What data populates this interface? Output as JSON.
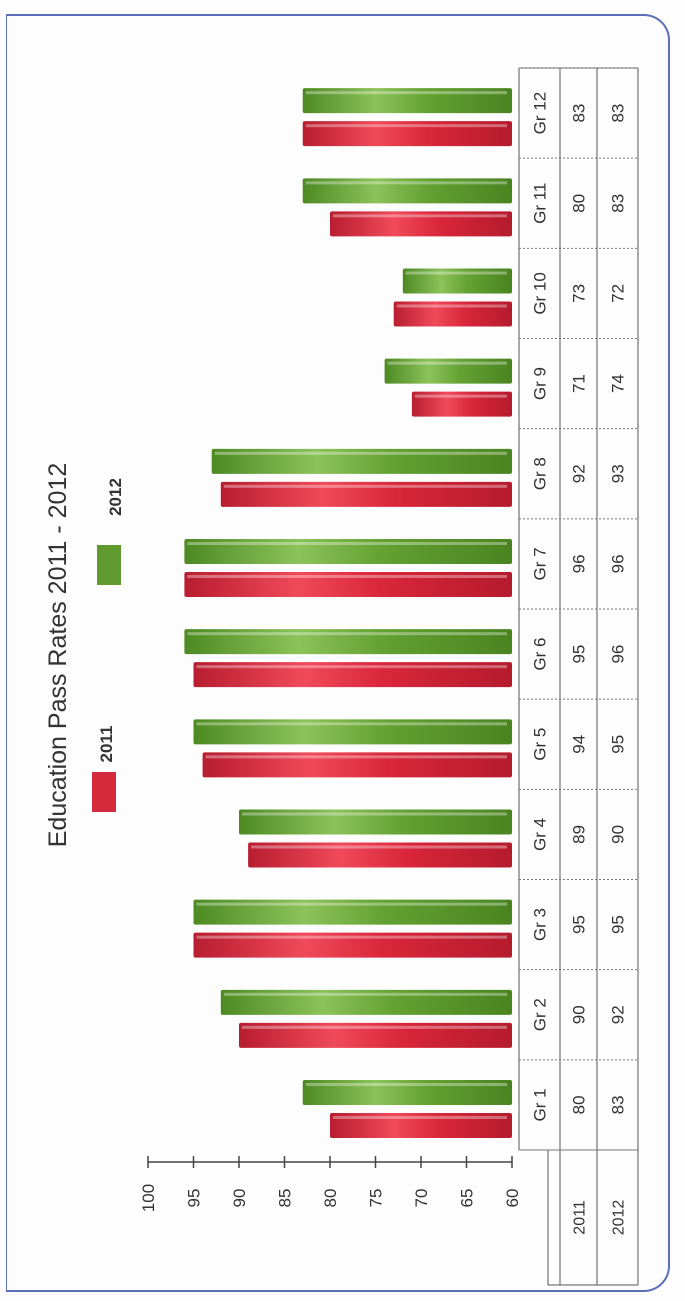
{
  "chart_data": {
    "type": "bar",
    "title": "Education Pass Rates 2011 - 2012",
    "categories": [
      "Gr 1",
      "Gr 2",
      "Gr 3",
      "Gr 4",
      "Gr 5",
      "Gr 6",
      "Gr 7",
      "Gr 8",
      "Gr 9",
      "Gr 10",
      "Gr 11",
      "Gr 12"
    ],
    "series": [
      {
        "name": "2011",
        "color": "#d42a3c",
        "values": [
          80,
          90,
          95,
          89,
          94,
          95,
          96,
          92,
          71,
          73,
          80,
          83
        ]
      },
      {
        "name": "2012",
        "color": "#5e9a2e",
        "values": [
          83,
          92,
          95,
          90,
          95,
          96,
          96,
          93,
          74,
          72,
          83,
          83
        ]
      }
    ],
    "ylim": [
      60,
      100
    ],
    "yticks": [
      100,
      95,
      90,
      85,
      80,
      75,
      70,
      65,
      60
    ],
    "legend_position": "top",
    "orientation": "rotated-90-counterclockwise",
    "data_table": true
  }
}
